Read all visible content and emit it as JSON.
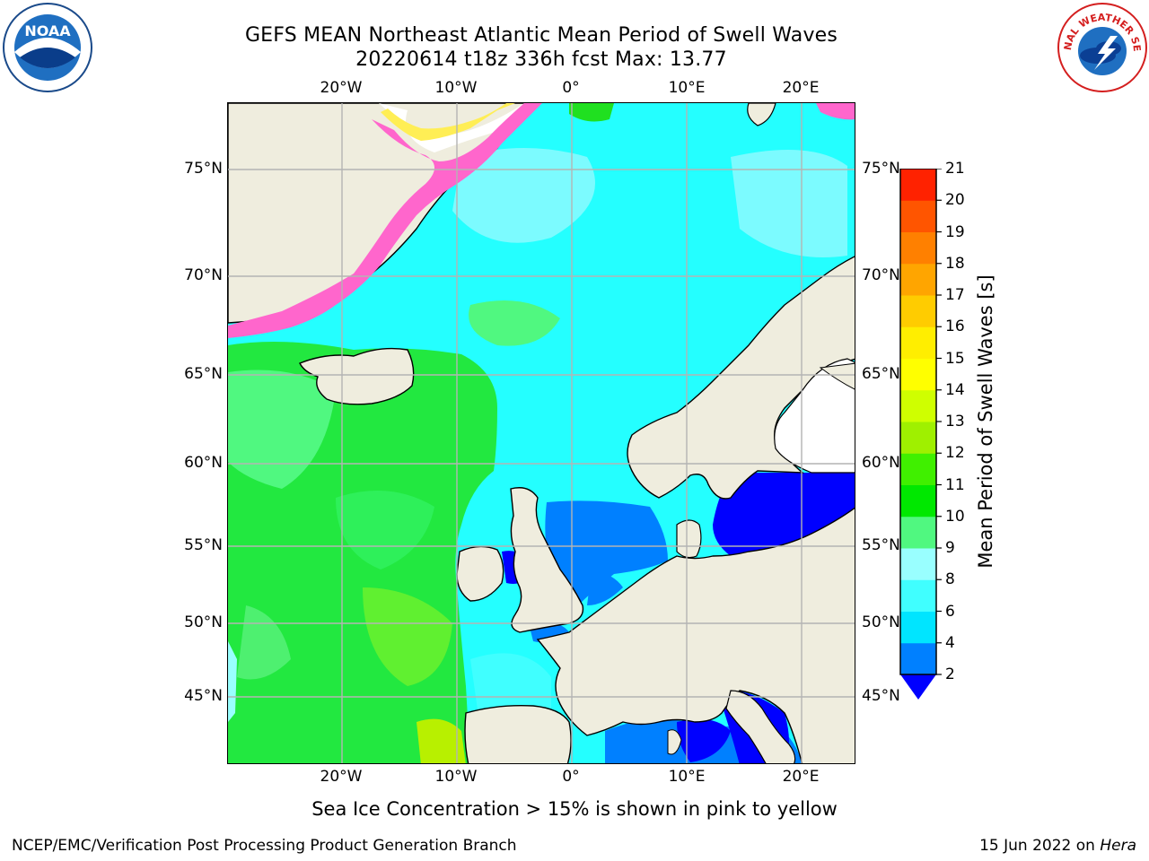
{
  "header": {
    "title_line1": "GEFS MEAN Northeast Atlantic Mean Period of Swell Waves",
    "title_line2": "20220614 t18z 336h fcst   Max: 13.77"
  },
  "logos": {
    "noaa": {
      "icon": "noaa-logo-icon",
      "text": "NOAA"
    },
    "nws": {
      "icon": "nws-logo-icon",
      "text": "NATIONAL WEATHER SERVICE"
    }
  },
  "map": {
    "lon_labels": [
      "20°W",
      "10°W",
      "0°",
      "10°E",
      "20°E"
    ],
    "lat_labels": [
      "75°N",
      "70°N",
      "65°N",
      "60°N",
      "55°N",
      "50°N",
      "45°N"
    ],
    "colors": {
      "land": "#efedde",
      "gridline": "#b4b4b4",
      "coast": "#000000",
      "ice_pink": "#ff66cc",
      "ice_yellow": "#ffee55"
    }
  },
  "colorbar": {
    "label": "Mean Period of Swell Waves [s]",
    "ticks": [
      "2",
      "4",
      "6",
      "8",
      "9",
      "10",
      "11",
      "12",
      "13",
      "14",
      "15",
      "16",
      "17",
      "18",
      "19",
      "20",
      "21"
    ],
    "colors": [
      "#0080ff",
      "#00e5ff",
      "#40ffff",
      "#99ffff",
      "#50f880",
      "#00e800",
      "#40f000",
      "#9ff000",
      "#cfff00",
      "#ffff00",
      "#ffee00",
      "#ffcc00",
      "#ffa500",
      "#ff8000",
      "#ff5500",
      "#ff2200"
    ],
    "under_color": "#0000ff"
  },
  "note": "Sea Ice Concentration > 15% is shown in pink to yellow",
  "footer": {
    "left": "NCEP/EMC/Verification Post Processing Product Generation Branch",
    "date": "15 Jun 2022 on ",
    "machine": "Hera"
  }
}
